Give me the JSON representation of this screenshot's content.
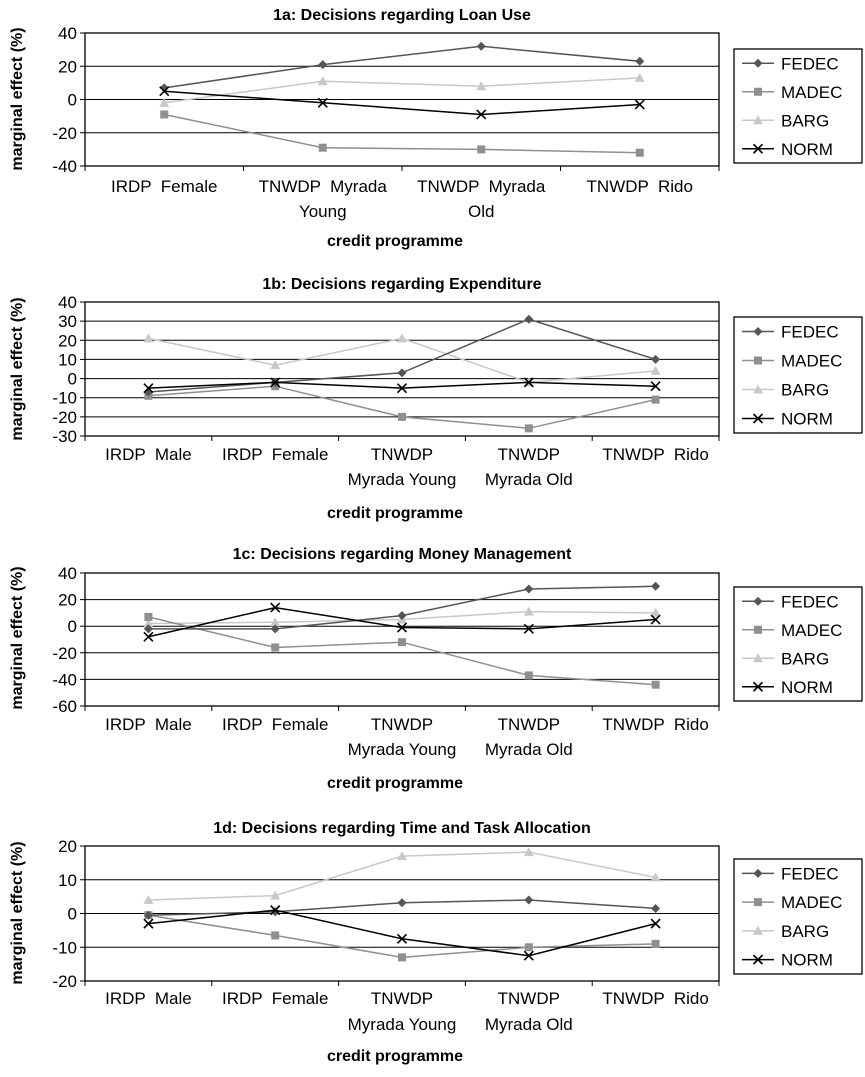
{
  "chart_data": [
    {
      "type": "line",
      "title": "1a: Decisions regarding Loan Use",
      "xlabel": "credit programme",
      "ylabel": "marginal effect (%)",
      "categories": [
        [
          "IRDP  Female"
        ],
        [
          "TNWDP  Myrada",
          "Young"
        ],
        [
          "TNWDP  Myrada",
          "Old"
        ],
        [
          "TNWDP  Rido"
        ]
      ],
      "ylim": [
        -40,
        40
      ],
      "yticks": [
        -40,
        -20,
        0,
        20,
        40
      ],
      "grid": true,
      "legend_position": "right",
      "series": [
        {
          "name": "FEDEC",
          "values": [
            7,
            21,
            32,
            23
          ]
        },
        {
          "name": "MADEC",
          "values": [
            -9,
            -29,
            -30,
            -32
          ]
        },
        {
          "name": "BARG",
          "values": [
            -2,
            11,
            8,
            13
          ]
        },
        {
          "name": "NORM",
          "values": [
            5,
            -2,
            -9,
            -3
          ]
        }
      ]
    },
    {
      "type": "line",
      "title": "1b: Decisions regarding Expenditure",
      "xlabel": "credit programme",
      "ylabel": "marginal effect (%)",
      "categories": [
        [
          "IRDP  Male"
        ],
        [
          "IRDP  Female"
        ],
        [
          "TNWDP",
          "Myrada Young"
        ],
        [
          "TNWDP",
          "Myrada Old"
        ],
        [
          "TNWDP  Rido"
        ]
      ],
      "ylim": [
        -30,
        40
      ],
      "yticks": [
        -30,
        -20,
        -10,
        0,
        10,
        20,
        30,
        40
      ],
      "grid": true,
      "legend_position": "right",
      "series": [
        {
          "name": "FEDEC",
          "values": [
            -7,
            -2,
            3,
            31,
            10
          ]
        },
        {
          "name": "MADEC",
          "values": [
            -9,
            -4,
            -20,
            -26,
            -11
          ]
        },
        {
          "name": "BARG",
          "values": [
            21,
            7,
            21,
            -2,
            4
          ]
        },
        {
          "name": "NORM",
          "values": [
            -5,
            -2,
            -5,
            -2,
            -4
          ]
        }
      ]
    },
    {
      "type": "line",
      "title": "1c: Decisions regarding Money Management",
      "xlabel": "credit programme",
      "ylabel": "marginal effect (%)",
      "categories": [
        [
          "IRDP  Male"
        ],
        [
          "IRDP  Female"
        ],
        [
          "TNWDP",
          "Myrada Young"
        ],
        [
          "TNWDP",
          "Myrada Old"
        ],
        [
          "TNWDP  Rido"
        ]
      ],
      "ylim": [
        -60,
        40
      ],
      "yticks": [
        -60,
        -40,
        -20,
        0,
        20,
        40
      ],
      "grid": true,
      "legend_position": "right",
      "series": [
        {
          "name": "FEDEC",
          "values": [
            -2,
            -2,
            8,
            28,
            30
          ]
        },
        {
          "name": "MADEC",
          "values": [
            7,
            -16,
            -12,
            -37,
            -44
          ]
        },
        {
          "name": "BARG",
          "values": [
            2,
            3,
            5,
            11,
            10
          ]
        },
        {
          "name": "NORM",
          "values": [
            -8,
            14,
            -1,
            -2,
            5
          ]
        }
      ]
    },
    {
      "type": "line",
      "title": "1d: Decisions regarding Time and Task Allocation",
      "xlabel": "credit programme",
      "ylabel": "marginal effect (%)",
      "categories": [
        [
          "IRDP  Male"
        ],
        [
          "IRDP  Female"
        ],
        [
          "TNWDP",
          "Myrada Young"
        ],
        [
          "TNWDP",
          "Myrada Old"
        ],
        [
          "TNWDP  Rido"
        ]
      ],
      "ylim": [
        -20,
        20
      ],
      "yticks": [
        -20,
        -10,
        0,
        10,
        20
      ],
      "grid": true,
      "legend_position": "right",
      "series": [
        {
          "name": "FEDEC",
          "values": [
            -0.5,
            0.5,
            3.2,
            4,
            1.5
          ]
        },
        {
          "name": "MADEC",
          "values": [
            -0.5,
            -6.5,
            -13,
            -10,
            -9
          ]
        },
        {
          "name": "BARG",
          "values": [
            4,
            5.3,
            17,
            18.2,
            10.7
          ]
        },
        {
          "name": "NORM",
          "values": [
            -3,
            1,
            -7.5,
            -12.5,
            -3
          ]
        }
      ]
    }
  ],
  "series_styles": {
    "FEDEC": {
      "color": "#555555",
      "marker": "diamond-icon"
    },
    "MADEC": {
      "color": "#8f8f8f",
      "marker": "square-icon"
    },
    "BARG": {
      "color": "#c8c8c8",
      "marker": "triangle-icon"
    },
    "NORM": {
      "color": "#000000",
      "marker": "cross-icon"
    }
  }
}
